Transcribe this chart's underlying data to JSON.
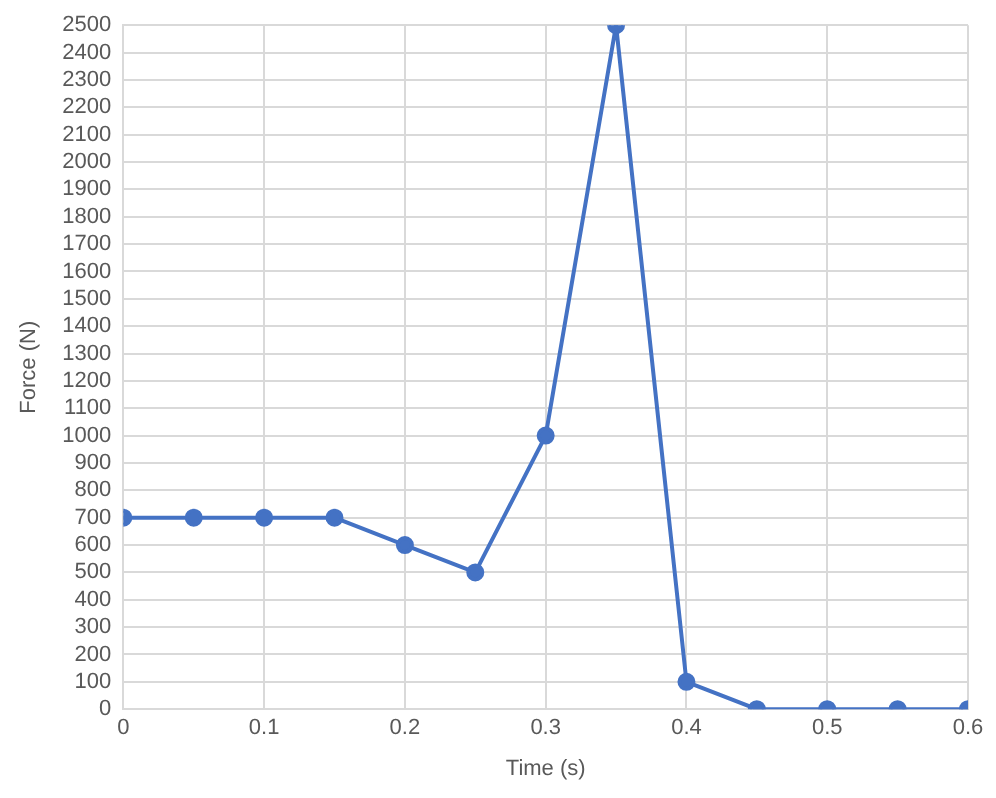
{
  "chart_data": {
    "type": "line",
    "xlabel": "Time (s)",
    "ylabel": "Force (N)",
    "x": [
      0,
      0.05,
      0.1,
      0.15,
      0.2,
      0.25,
      0.3,
      0.35,
      0.4,
      0.45,
      0.5,
      0.55,
      0.6
    ],
    "series": [
      {
        "color": "#4472c4",
        "values": [
          700,
          700,
          700,
          700,
          600,
          500,
          1000,
          2500,
          100,
          0,
          0,
          0,
          0
        ]
      }
    ],
    "xlim": [
      0,
      0.6
    ],
    "xticks": [
      0,
      0.1,
      0.2,
      0.3,
      0.4,
      0.5,
      0.6
    ],
    "ylim": [
      0,
      2500
    ],
    "yticks": [
      0,
      100,
      200,
      300,
      400,
      500,
      600,
      700,
      800,
      900,
      1000,
      1100,
      1200,
      1300,
      1400,
      1500,
      1600,
      1700,
      1800,
      1900,
      2000,
      2100,
      2200,
      2300,
      2400,
      2500
    ],
    "grid": true,
    "legend": false,
    "marker": "circle",
    "line_style": "solid"
  }
}
